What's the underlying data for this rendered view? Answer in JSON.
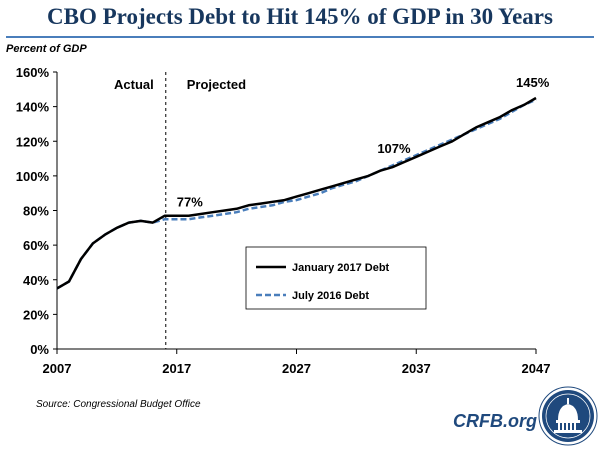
{
  "header": {
    "title": "CBO Projects Debt to Hit 145% of GDP in 30 Years",
    "y_axis_label": "Percent of GDP"
  },
  "footer": {
    "source": "Source: Congressional Budget Office",
    "site": "CRFB.org",
    "seal_icon": "capitol-dome-seal-icon"
  },
  "colors": {
    "title": "#17375e",
    "accent": "#4a7ebb",
    "jan_series": "#000000",
    "jul_series": "#4a7ebb",
    "seal_bg": "#1f497d"
  },
  "chart_data": {
    "type": "line",
    "xlim": [
      2007,
      2047
    ],
    "ylim": [
      0,
      160
    ],
    "x_ticks": [
      "2007",
      "2017",
      "2027",
      "2037",
      "2047"
    ],
    "y_ticks": [
      "0%",
      "20%",
      "40%",
      "60%",
      "80%",
      "100%",
      "120%",
      "140%",
      "160%"
    ],
    "grid": false,
    "divider_x": 2016,
    "region_labels": [
      "Actual",
      "Projected"
    ],
    "annotations": [
      {
        "text": "77%",
        "x": 2017,
        "y": 77
      },
      {
        "text": "107%",
        "x": 2034,
        "y": 107
      },
      {
        "text": "145%",
        "x": 2047,
        "y": 145
      }
    ],
    "legend_position": "center-right",
    "series": [
      {
        "name": "January 2017 Debt",
        "style": "solid",
        "x": [
          2007,
          2008,
          2009,
          2010,
          2011,
          2012,
          2013,
          2014,
          2015,
          2016,
          2017,
          2018,
          2019,
          2020,
          2021,
          2022,
          2023,
          2024,
          2025,
          2026,
          2027,
          2028,
          2029,
          2030,
          2031,
          2032,
          2033,
          2034,
          2035,
          2036,
          2037,
          2038,
          2039,
          2040,
          2041,
          2042,
          2043,
          2044,
          2045,
          2046,
          2047
        ],
        "values": [
          35,
          39,
          52,
          61,
          66,
          70,
          73,
          74,
          73,
          77,
          77,
          77,
          78,
          79,
          80,
          81,
          83,
          84,
          85,
          86,
          88,
          90,
          92,
          94,
          96,
          98,
          100,
          103,
          105,
          108,
          111,
          114,
          117,
          120,
          124,
          128,
          131,
          134,
          138,
          141,
          145
        ]
      },
      {
        "name": "July 2016 Debt",
        "style": "dashed",
        "x": [
          2007,
          2008,
          2009,
          2010,
          2011,
          2012,
          2013,
          2014,
          2015,
          2016,
          2017,
          2018,
          2019,
          2020,
          2021,
          2022,
          2023,
          2024,
          2025,
          2026,
          2027,
          2028,
          2029,
          2030,
          2031,
          2032,
          2033,
          2034,
          2035,
          2036,
          2037,
          2038,
          2039,
          2040,
          2041,
          2042,
          2043,
          2044,
          2045,
          2046,
          2047
        ],
        "values": [
          35,
          39,
          52,
          61,
          66,
          70,
          73,
          74,
          73,
          75,
          75,
          75,
          76,
          77,
          78,
          79,
          81,
          82,
          83,
          85,
          86,
          88,
          90,
          93,
          95,
          97,
          100,
          103,
          106,
          109,
          112,
          115,
          118,
          121,
          124,
          127,
          130,
          133,
          137,
          141,
          144
        ]
      }
    ]
  }
}
